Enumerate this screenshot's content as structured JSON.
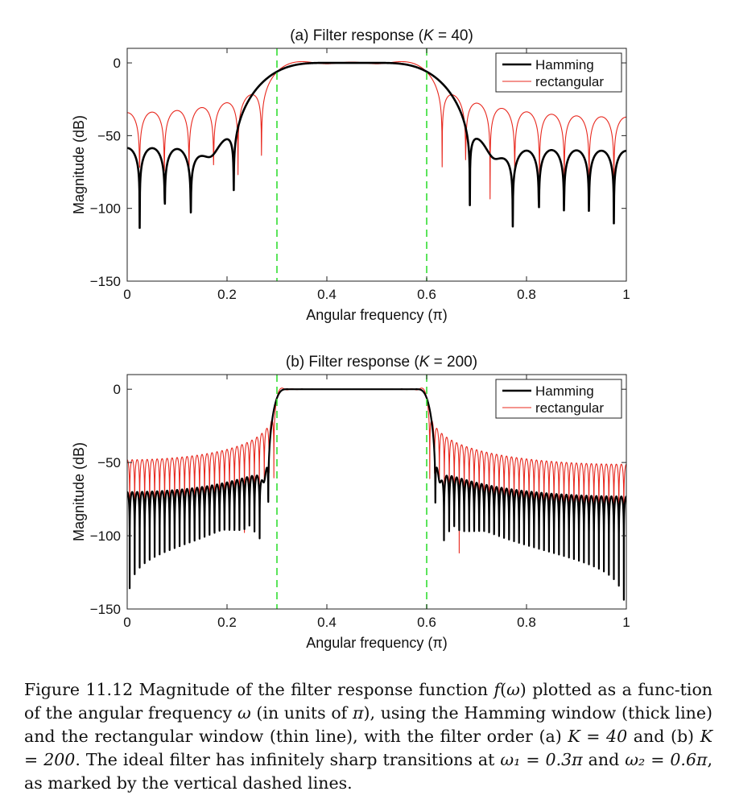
{
  "chart_data": [
    {
      "type": "line",
      "title": "(a)  Filter response  (K = 40)",
      "title_parts": {
        "prefix": "(a)  Filter response  (",
        "var": "K",
        "suffix": " = 40)"
      },
      "order": 40,
      "xlabel": "Angular frequency (π)",
      "ylabel": "Magnitude (dB)",
      "xlim": [
        0,
        1
      ],
      "ylim": [
        -150,
        10
      ],
      "xticks": [
        0,
        0.2,
        0.4,
        0.6,
        0.8,
        1
      ],
      "xtick_labels": [
        "0",
        "0.2",
        "0.4",
        "0.6",
        "0.8",
        "1"
      ],
      "yticks": [
        0,
        -50,
        -100,
        -150
      ],
      "ytick_labels": [
        "0",
        "−50",
        "−100",
        "−150"
      ],
      "passband_edges": [
        0.3,
        0.6
      ],
      "grid": false,
      "legend_position": "top-right",
      "series": [
        {
          "name": "Hamming",
          "color": "#000000",
          "line": "thick"
        },
        {
          "name": "rectangular",
          "color": "#e8281e",
          "line": "thin"
        }
      ],
      "markers_color": "#33dd33"
    },
    {
      "type": "line",
      "title": "(b)  Filter response  (K = 200)",
      "title_parts": {
        "prefix": "(b)  Filter response  (",
        "var": "K",
        "suffix": " = 200)"
      },
      "order": 200,
      "xlabel": "Angular frequency (π)",
      "ylabel": "Magnitude (dB)",
      "xlim": [
        0,
        1
      ],
      "ylim": [
        -150,
        10
      ],
      "xticks": [
        0,
        0.2,
        0.4,
        0.6,
        0.8,
        1
      ],
      "xtick_labels": [
        "0",
        "0.2",
        "0.4",
        "0.6",
        "0.8",
        "1"
      ],
      "yticks": [
        0,
        -50,
        -100,
        -150
      ],
      "ytick_labels": [
        "0",
        "−50",
        "−100",
        "−150"
      ],
      "passband_edges": [
        0.3,
        0.6
      ],
      "grid": false,
      "legend_position": "top-right",
      "series": [
        {
          "name": "Hamming",
          "color": "#000000",
          "line": "thick"
        },
        {
          "name": "rectangular",
          "color": "#e8281e",
          "line": "thin"
        }
      ],
      "markers_color": "#33dd33"
    }
  ],
  "caption": {
    "text": "Figure 11.12 Magnitude of the filter response function f(ω) plotted as a function of the angular frequency ω (in units of π), using the Hamming window (thick line) and the rectangular window (thin line), with the filter order (a) K = 40 and (b) K = 200. The ideal filter has infinitely sharp transitions at ω1 = 0.3π and ω2 = 0.6π, as marked by the vertical dashed lines.",
    "label": "Figure 11.12",
    "t1": " Magnitude of the filter response function ",
    "t2": " plotted as a func-tion of the angular frequency ",
    "t3": " (in units of ",
    "t4": "), using the Hamming window (thick line) and the rectangular window (thin line), with the filter order (a) ",
    "t5": " and (b) ",
    "t6": ". The ideal filter has infinitely sharp transitions at ",
    "t7": " and ",
    "t8": ", as marked by the vertical dashed lines.",
    "m_f": "f",
    "m_lp": "(",
    "m_omega": "ω",
    "m_rp": ")",
    "m_omega2": "ω",
    "m_pi": "π",
    "m_k40": "K = 40",
    "m_k200": "K = 200",
    "m_w1": "ω₁ = 0.3π",
    "m_w2": "ω₂ = 0.6π"
  }
}
